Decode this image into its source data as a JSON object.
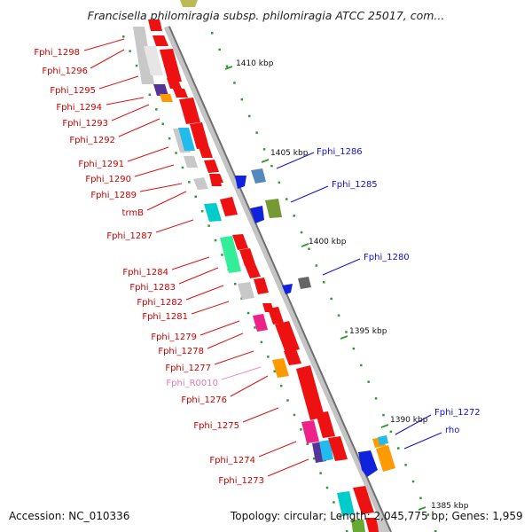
{
  "title": "Francisella philomiragia subsp. philomiragia ATCC 25017, com...",
  "footer": {
    "accession": "Accession: NC_010336",
    "topology": "Topology: circular; Length: 2,045,775 bp; Genes: 1,959"
  },
  "scale_labels": [
    "1410 kbp",
    "1405 kbp",
    "1400 kbp",
    "1395 kbp",
    "1390 kbp",
    "1385 kbp"
  ],
  "left_labels": [
    "Fphi_1298",
    "Fphi_1296",
    "Fphi_1295",
    "Fphi_1294",
    "Fphi_1293",
    "Fphi_1292",
    "Fphi_1291",
    "Fphi_1290",
    "Fphi_1289",
    "trmB",
    "Fphi_1287",
    "Fphi_1284",
    "Fphi_1283",
    "Fphi_1282",
    "Fphi_1281",
    "Fphi_1279",
    "Fphi_1278",
    "Fphi_1277",
    "Fphi_R0010",
    "Fphi_1276",
    "Fphi_1275",
    "Fphi_1274",
    "Fphi_1273"
  ],
  "right_labels": [
    "Fphi_1286",
    "Fphi_1285",
    "Fphi_1280",
    "Fphi_1272",
    "rho"
  ],
  "colors": {
    "forward_gene": "#ee1111",
    "reverse_gene": "#1122dd",
    "rna_gene": "#ee88cc",
    "scale_tick": "#339933",
    "backbone": "#888888"
  }
}
